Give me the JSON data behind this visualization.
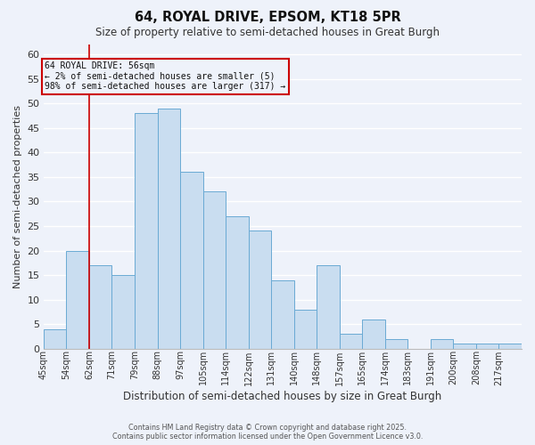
{
  "title": "64, ROYAL DRIVE, EPSOM, KT18 5PR",
  "subtitle": "Size of property relative to semi-detached houses in Great Burgh",
  "xlabel": "Distribution of semi-detached houses by size in Great Burgh",
  "ylabel": "Number of semi-detached properties",
  "footnote1": "Contains HM Land Registry data © Crown copyright and database right 2025.",
  "footnote2": "Contains public sector information licensed under the Open Government Licence v3.0.",
  "bar_labels": [
    "45sqm",
    "54sqm",
    "62sqm",
    "71sqm",
    "79sqm",
    "88sqm",
    "97sqm",
    "105sqm",
    "114sqm",
    "122sqm",
    "131sqm",
    "140sqm",
    "148sqm",
    "157sqm",
    "165sqm",
    "174sqm",
    "183sqm",
    "191sqm",
    "200sqm",
    "208sqm",
    "217sqm"
  ],
  "bar_values": [
    4,
    20,
    17,
    15,
    48,
    49,
    36,
    32,
    27,
    24,
    14,
    8,
    17,
    3,
    6,
    2,
    0,
    2,
    1,
    1,
    1
  ],
  "bar_color": "#c9ddf0",
  "bar_edge_color": "#6aaad4",
  "bg_color": "#eef2fa",
  "grid_color": "#ffffff",
  "ylim": [
    0,
    62
  ],
  "yticks": [
    0,
    5,
    10,
    15,
    20,
    25,
    30,
    35,
    40,
    45,
    50,
    55,
    60
  ],
  "annotation_title": "64 ROYAL DRIVE: 56sqm",
  "annotation_line1": "← 2% of semi-detached houses are smaller (5)",
  "annotation_line2": "98% of semi-detached houses are larger (317) →",
  "annotation_box_color": "#cc0000",
  "redline_bar_index": 1
}
